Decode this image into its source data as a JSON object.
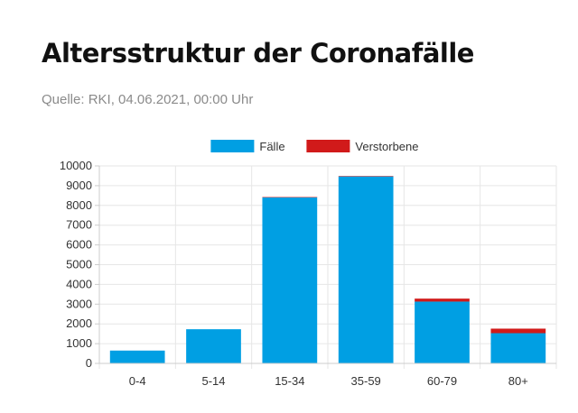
{
  "header": {
    "title": "Altersstruktur der Coronafälle",
    "source": "Quelle: RKI, 04.06.2021, 00:00 Uhr"
  },
  "chart_data": {
    "type": "bar",
    "stacked": true,
    "categories": [
      "0-4",
      "5-14",
      "15-34",
      "35-59",
      "60-79",
      "80+"
    ],
    "series": [
      {
        "name": "Fälle",
        "color": "#009fe3",
        "values": [
          650,
          1730,
          8420,
          9470,
          3130,
          1530
        ]
      },
      {
        "name": "Verstorbene",
        "color": "#d11a1a",
        "values": [
          0,
          0,
          3,
          20,
          150,
          230
        ]
      }
    ],
    "ylim": [
      0,
      10000
    ],
    "yticks": [
      "0",
      "1000",
      "2000",
      "3000",
      "4000",
      "5000",
      "6000",
      "7000",
      "8000",
      "9000",
      "10000"
    ],
    "grid": true,
    "legend": "top-center"
  }
}
